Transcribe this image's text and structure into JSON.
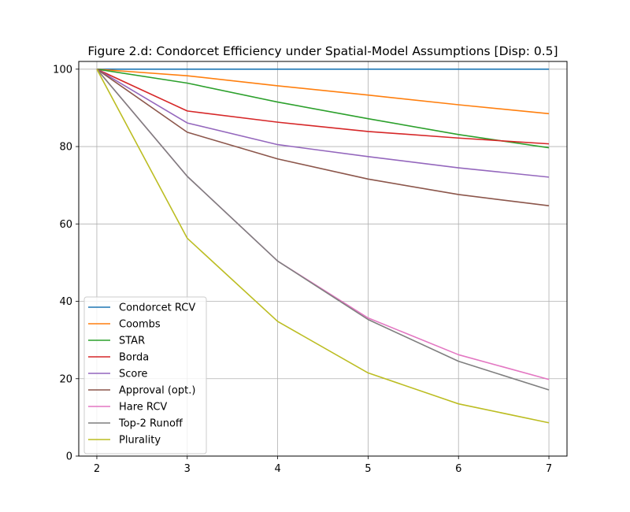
{
  "chart_data": {
    "type": "line",
    "title": "Figure 2.d: Condorcet Efficiency under Spatial-Model Assumptions [Disp: 0.5]",
    "xlabel": "",
    "ylabel": "",
    "x": [
      2,
      3,
      4,
      5,
      6,
      7
    ],
    "xlim": [
      1.8,
      7.2
    ],
    "ylim": [
      0,
      102
    ],
    "xticks": [
      2,
      3,
      4,
      5,
      6,
      7
    ],
    "yticks": [
      0,
      20,
      40,
      60,
      80,
      100
    ],
    "grid": true,
    "legend_position": "lower-left",
    "series": [
      {
        "name": "Condorcet RCV",
        "color": "#1f77b4",
        "values": [
          100,
          100,
          100,
          100,
          100,
          100
        ]
      },
      {
        "name": "Coombs",
        "color": "#ff7f0e",
        "values": [
          100,
          98.3,
          95.7,
          93.3,
          90.8,
          88.5
        ]
      },
      {
        "name": "STAR",
        "color": "#2ca02c",
        "values": [
          100,
          96.4,
          91.5,
          87.2,
          83.1,
          79.7
        ]
      },
      {
        "name": "Borda",
        "color": "#d62728",
        "values": [
          100,
          89.2,
          86.3,
          83.9,
          82.2,
          80.7
        ]
      },
      {
        "name": "Score",
        "color": "#9467bd",
        "values": [
          100,
          86.1,
          80.5,
          77.4,
          74.5,
          72.1
        ]
      },
      {
        "name": "Approval (opt.)",
        "color": "#8c564b",
        "values": [
          100,
          83.7,
          76.8,
          71.6,
          67.6,
          64.7
        ]
      },
      {
        "name": "Hare RCV",
        "color": "#e377c2",
        "values": [
          100,
          72.3,
          50.4,
          35.7,
          26.2,
          19.8
        ]
      },
      {
        "name": "Top-2 Runoff",
        "color": "#7f7f7f",
        "values": [
          100,
          72.3,
          50.4,
          35.3,
          24.5,
          17.1
        ]
      },
      {
        "name": "Plurality",
        "color": "#bcbd22",
        "values": [
          100,
          56.3,
          34.8,
          21.5,
          13.5,
          8.6
        ]
      }
    ]
  }
}
